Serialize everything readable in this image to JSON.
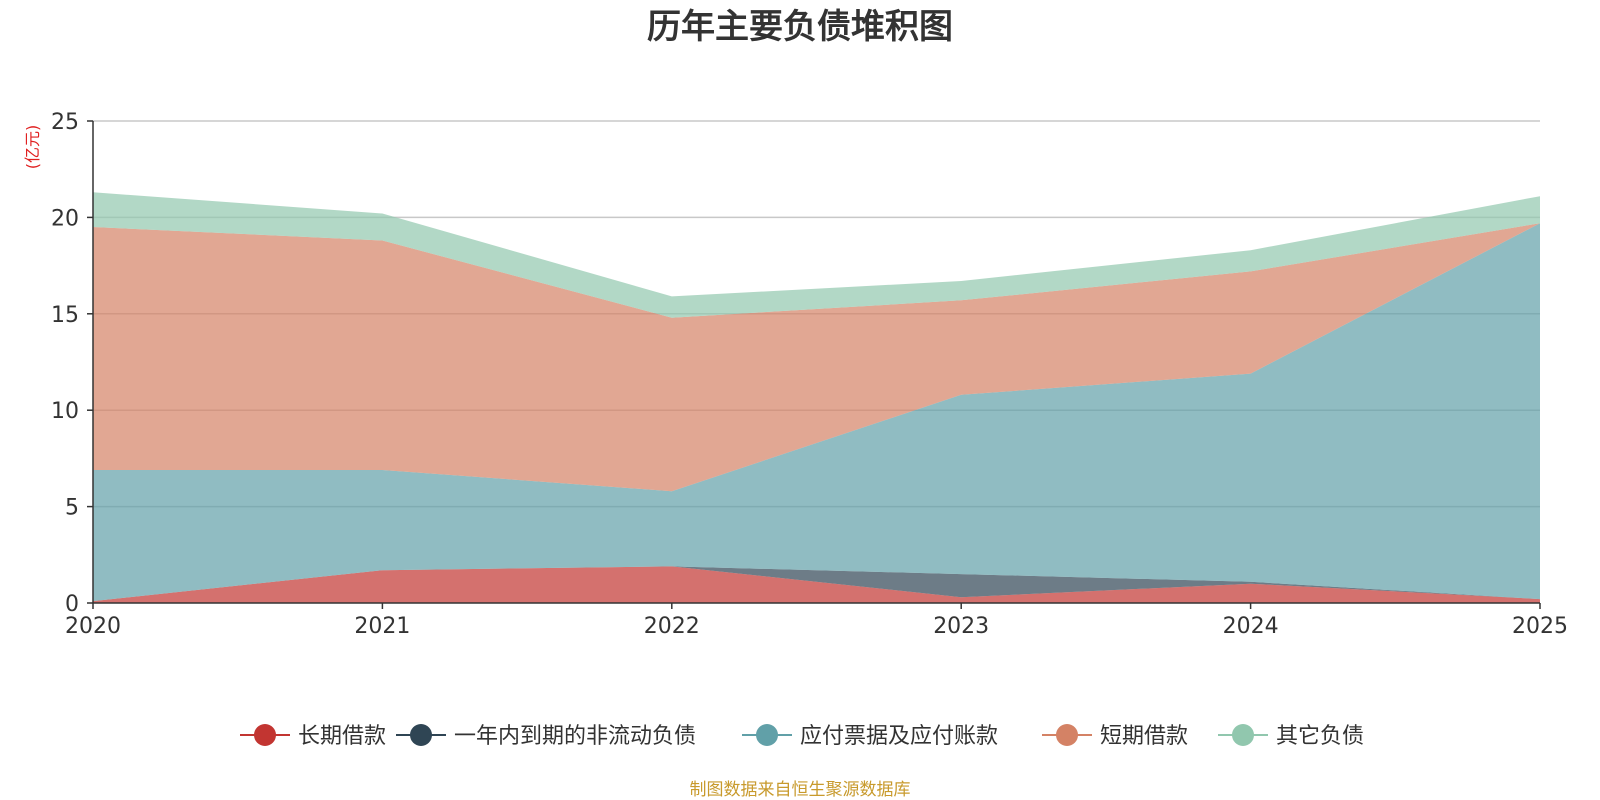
{
  "chart_data": {
    "type": "area",
    "stacked": true,
    "title": "历年主要负债堆积图",
    "ylabel": "(亿元)",
    "xlabel": "",
    "categories": [
      "2020",
      "2021",
      "2022",
      "2023",
      "2024",
      "2025"
    ],
    "ylim": [
      0,
      25
    ],
    "yticks": [
      0,
      5,
      10,
      15,
      20,
      25
    ],
    "grid": true,
    "legend_position": "bottom",
    "series": [
      {
        "name": "长期借款",
        "color": "#c23531",
        "values": [
          0.1,
          1.7,
          1.9,
          0.3,
          1.0,
          0.2
        ]
      },
      {
        "name": "一年内到期的非流动负债",
        "color": "#2f4554",
        "values": [
          0.0,
          0.0,
          0.0,
          1.2,
          0.1,
          0.0
        ]
      },
      {
        "name": "应付票据及应付账款",
        "color": "#61a0a8",
        "values": [
          6.8,
          5.2,
          3.9,
          9.3,
          10.8,
          19.5
        ]
      },
      {
        "name": "短期借款",
        "color": "#d48265",
        "values": [
          12.6,
          11.9,
          9.0,
          4.9,
          5.3,
          0.0
        ]
      },
      {
        "name": "其它负债",
        "color": "#91c7ae",
        "values": [
          1.8,
          1.4,
          1.1,
          1.0,
          1.1,
          1.4
        ]
      }
    ],
    "source": "制图数据来自恒生聚源数据库"
  },
  "colors": {
    "title": "#333333",
    "unit": "#e02020",
    "source": "#c89a2c",
    "grid": "#c8c8c8",
    "axis": "#333333"
  }
}
